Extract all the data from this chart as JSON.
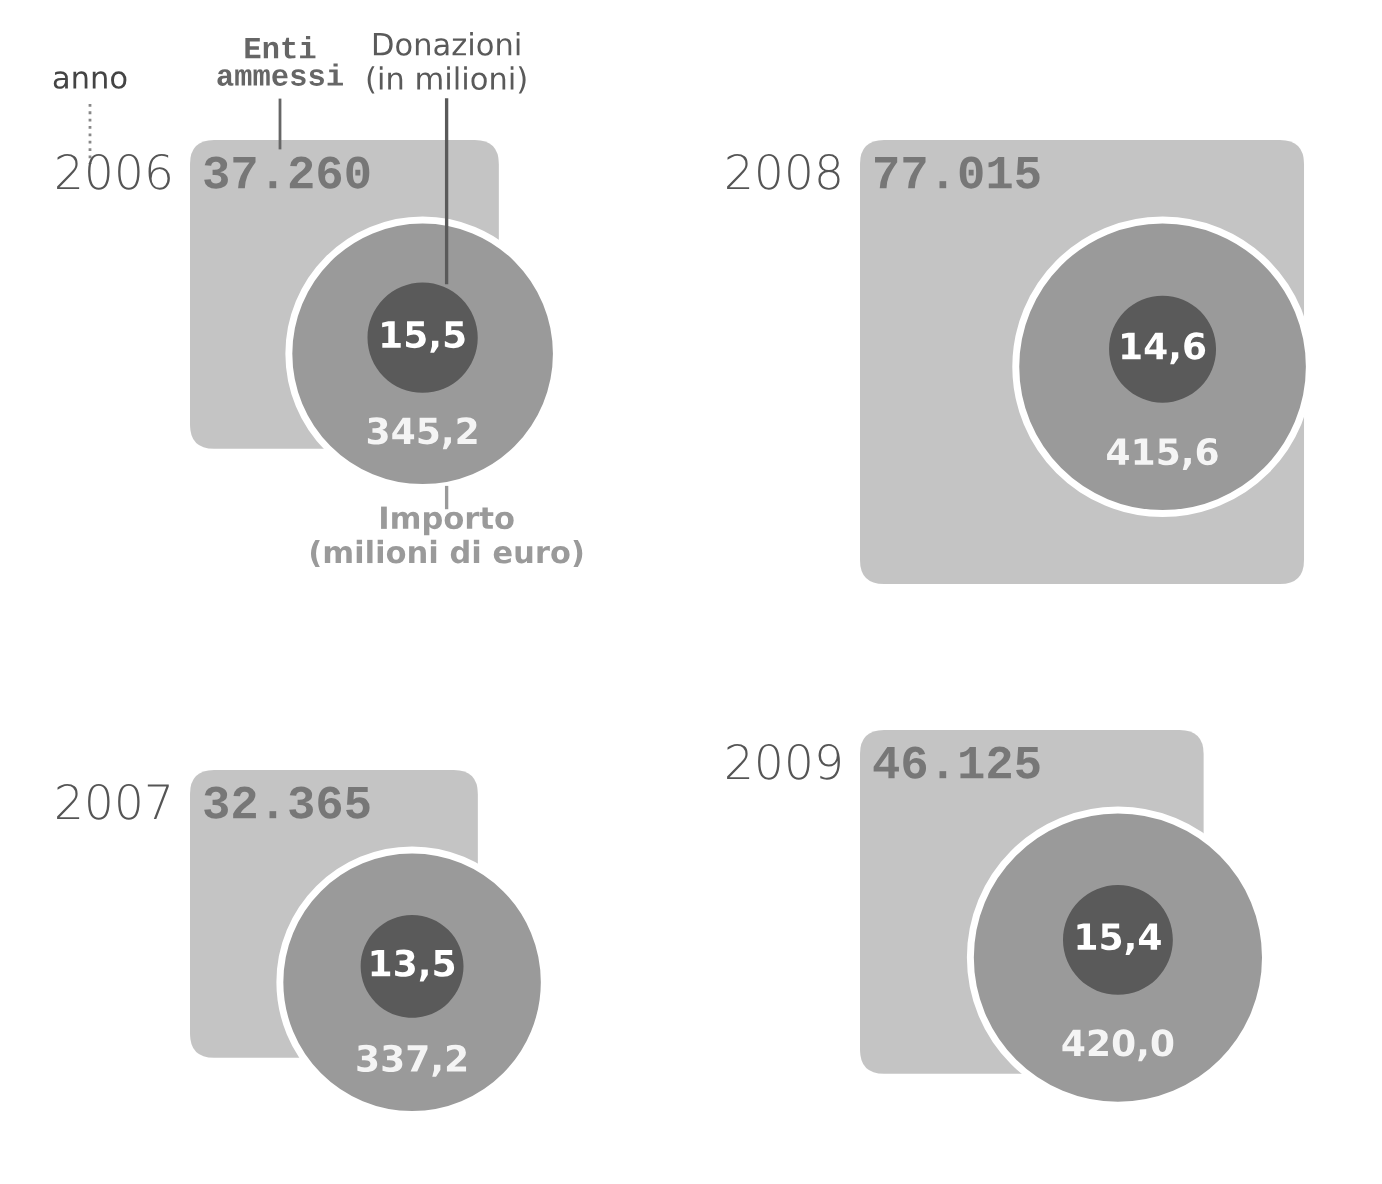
{
  "chart_data": {
    "type": "other",
    "xlabel": "anno",
    "categories": [
      "2006",
      "2007",
      "2008",
      "2009"
    ],
    "series": [
      {
        "name": "Enti ammessi",
        "color": "#c4c4c4",
        "values": [
          37260,
          32365,
          77015,
          46125
        ],
        "value_labels": [
          "37.260",
          "32.365",
          "77.015",
          "46.125"
        ]
      },
      {
        "name": "Donazioni (in milioni)",
        "color": "#5a5a5a",
        "values": [
          15.5,
          13.5,
          14.6,
          15.4
        ],
        "value_labels": [
          "15,5",
          "13,5",
          "14,6",
          "15,4"
        ]
      },
      {
        "name": "Importo (milioni di euro)",
        "color": "#9a9a9a",
        "values": [
          345.2,
          337.2,
          415.6,
          420.0
        ],
        "value_labels": [
          "345,2",
          "337,2",
          "415,6",
          "420,0"
        ]
      }
    ]
  }
}
